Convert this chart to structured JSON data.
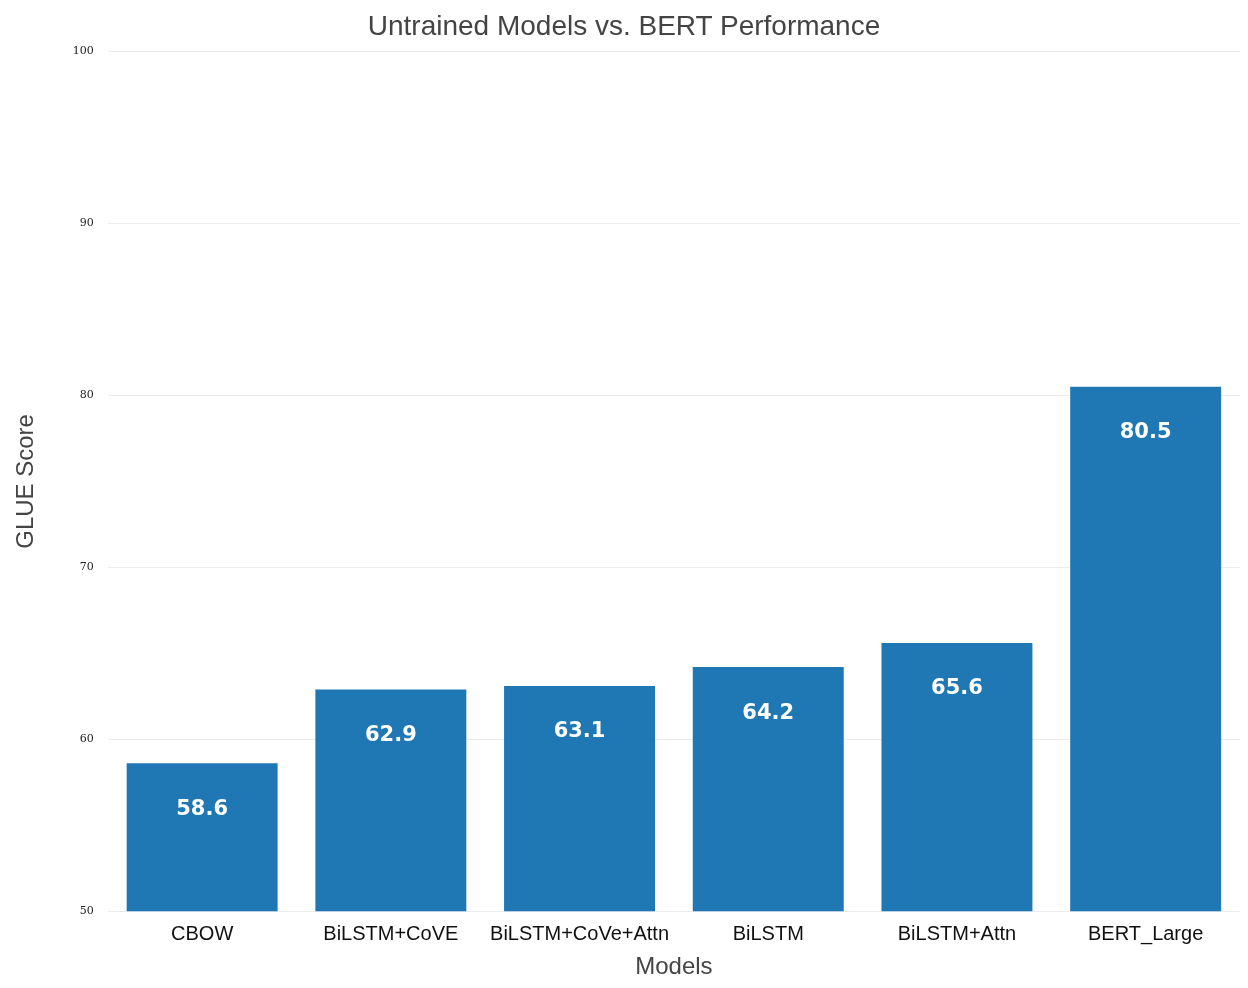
{
  "chart_data": {
    "type": "bar",
    "title": "Untrained Models vs. BERT Performance",
    "xlabel": "Models",
    "ylabel": "GLUE Score",
    "categories": [
      "CBOW",
      "BiLSTM+CoVE",
      "BiLSTM+CoVe+Attn",
      "BiLSTM",
      "BiLSTM+Attn",
      "BERT_Large"
    ],
    "values": [
      58.6,
      62.9,
      63.1,
      64.2,
      65.6,
      80.5
    ],
    "color": "#1f77b4",
    "ylim": [
      50,
      100
    ],
    "yticks": [
      50,
      60,
      70,
      80,
      90,
      100
    ],
    "grid": "y",
    "data_labels": true
  }
}
